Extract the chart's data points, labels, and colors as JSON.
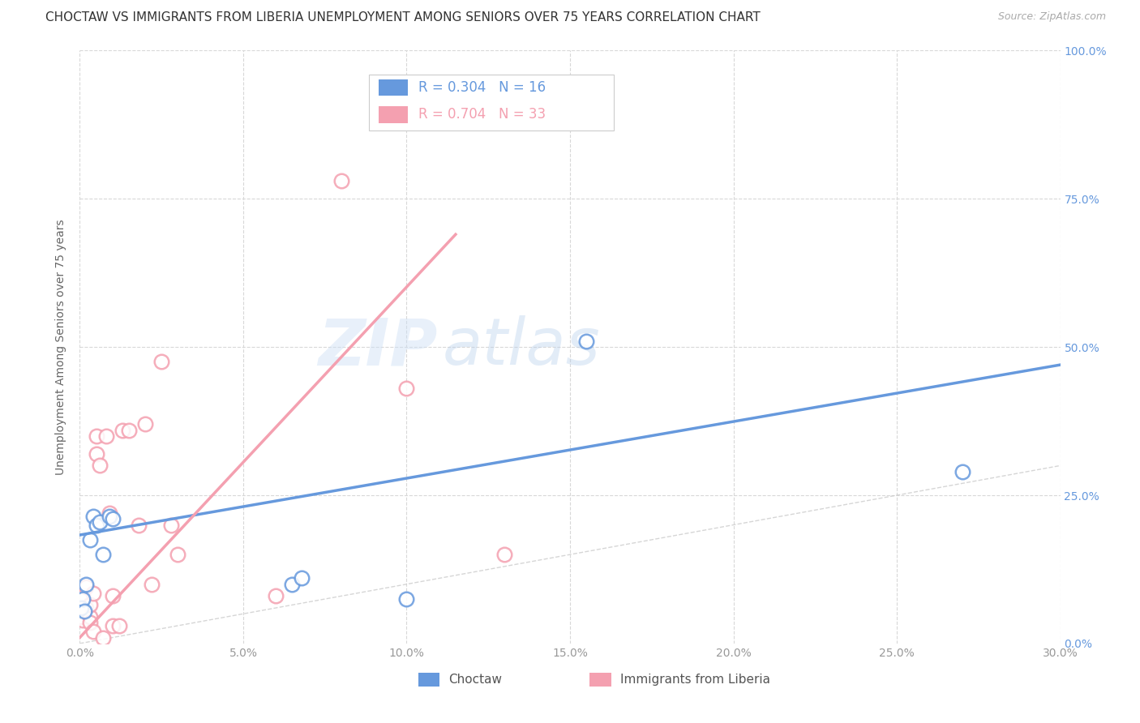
{
  "title": "CHOCTAW VS IMMIGRANTS FROM LIBERIA UNEMPLOYMENT AMONG SENIORS OVER 75 YEARS CORRELATION CHART",
  "source": "Source: ZipAtlas.com",
  "ylabel": "Unemployment Among Seniors over 75 years",
  "xlim": [
    0.0,
    0.3
  ],
  "ylim": [
    0.0,
    1.0
  ],
  "choctaw_R": 0.304,
  "choctaw_N": 16,
  "liberia_R": 0.704,
  "liberia_N": 33,
  "choctaw_color": "#6699dd",
  "liberia_color": "#f4a0b0",
  "choctaw_scatter_x": [
    0.0005,
    0.001,
    0.0015,
    0.002,
    0.003,
    0.004,
    0.005,
    0.006,
    0.007,
    0.009,
    0.01,
    0.065,
    0.068,
    0.1,
    0.155,
    0.27
  ],
  "choctaw_scatter_y": [
    0.06,
    0.075,
    0.055,
    0.1,
    0.175,
    0.215,
    0.2,
    0.205,
    0.15,
    0.215,
    0.21,
    0.1,
    0.11,
    0.075,
    0.51,
    0.29
  ],
  "liberia_scatter_x": [
    0.0003,
    0.0005,
    0.001,
    0.001,
    0.001,
    0.002,
    0.002,
    0.003,
    0.003,
    0.003,
    0.004,
    0.004,
    0.005,
    0.005,
    0.006,
    0.007,
    0.008,
    0.009,
    0.01,
    0.01,
    0.012,
    0.013,
    0.015,
    0.018,
    0.02,
    0.022,
    0.025,
    0.028,
    0.03,
    0.06,
    0.08,
    0.1,
    0.13
  ],
  "liberia_scatter_y": [
    0.045,
    0.075,
    0.055,
    0.04,
    0.08,
    0.06,
    0.095,
    0.045,
    0.065,
    0.035,
    0.02,
    0.085,
    0.32,
    0.35,
    0.3,
    0.01,
    0.35,
    0.22,
    0.03,
    0.08,
    0.03,
    0.36,
    0.36,
    0.2,
    0.37,
    0.1,
    0.475,
    0.2,
    0.15,
    0.08,
    0.78,
    0.43,
    0.15
  ],
  "choctaw_line_x": [
    0.0,
    0.3
  ],
  "choctaw_line_y": [
    0.183,
    0.47
  ],
  "liberia_line_x": [
    0.0,
    0.115
  ],
  "liberia_line_y": [
    0.01,
    0.69
  ],
  "background_color": "#ffffff",
  "grid_color": "#d8d8d8",
  "title_fontsize": 11,
  "source_fontsize": 9,
  "legend_fontsize": 12,
  "axis_label_fontsize": 10,
  "tick_fontsize": 10
}
